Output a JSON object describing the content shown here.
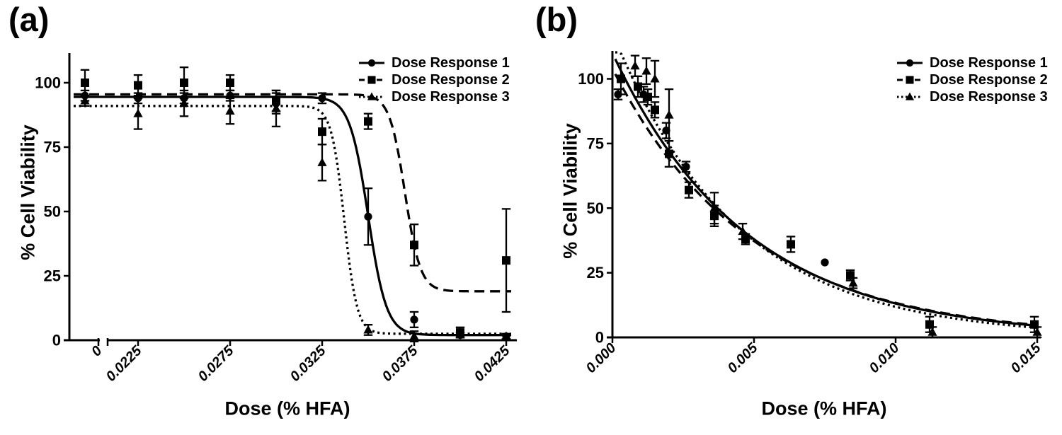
{
  "figure": {
    "background": "#ffffff",
    "ink": "#000000",
    "description": "Two-panel dose-response figure, % cell viability vs dose (% HFA)"
  },
  "chart_data": [
    {
      "id": "a",
      "panel_label": "(a)",
      "type": "scatter",
      "subtype": "dose-response points with SD error bars and fitted sigmoid curves",
      "xlabel": "Dose (% HFA)",
      "ylabel": "% Cell Viability",
      "x_ticks": [
        {
          "label": "0",
          "dose": 0
        },
        {
          "label": "0.0225",
          "dose": 0.0225
        },
        {
          "label": "0.0275",
          "dose": 0.0275
        },
        {
          "label": "0.0325",
          "dose": 0.0325
        },
        {
          "label": "0.0375",
          "dose": 0.0375
        },
        {
          "label": "0.0425",
          "dose": 0.0425
        }
      ],
      "y_ticks": [
        0,
        25,
        50,
        75,
        100
      ],
      "ylim": [
        0,
        111
      ],
      "x_axis_break_after_zero": true,
      "grid": false,
      "legend_position": "top-right-inside",
      "series": [
        {
          "name": "Dose Response 1",
          "marker": "circle",
          "line": "solid",
          "points": [
            [
              0,
              95,
              2
            ],
            [
              0.0225,
              94,
              2
            ],
            [
              0.025,
              94,
              2
            ],
            [
              0.0275,
              95,
              2
            ],
            [
              0.03,
              92,
              4
            ],
            [
              0.0325,
              94,
              2
            ],
            [
              0.035,
              48,
              11
            ],
            [
              0.0375,
              8,
              3
            ],
            [
              0.04,
              2,
              1
            ],
            [
              0.0425,
              1.5,
              1
            ]
          ],
          "fit": {
            "model": "logistic",
            "top": 94.5,
            "bottom": 2,
            "ic50": 0.035,
            "slope": 0.0005
          }
        },
        {
          "name": "Dose Response 2",
          "marker": "square",
          "line": "dashed",
          "points": [
            [
              0,
              100,
              5
            ],
            [
              0.0225,
              99,
              4
            ],
            [
              0.025,
              100,
              6
            ],
            [
              0.0275,
              100,
              3
            ],
            [
              0.03,
              93,
              4
            ],
            [
              0.0325,
              81,
              5
            ],
            [
              0.035,
              85,
              3
            ],
            [
              0.0375,
              37,
              8
            ],
            [
              0.04,
              3,
              2
            ],
            [
              0.0425,
              31,
              20
            ]
          ],
          "fit": {
            "model": "logistic",
            "top": 95.5,
            "bottom": 19,
            "ic50": 0.037,
            "slope": 0.00042
          }
        },
        {
          "name": "Dose Response 3",
          "marker": "triangle",
          "line": "dotted",
          "points": [
            [
              0,
              93,
              2
            ],
            [
              0.0225,
              88,
              6
            ],
            [
              0.025,
              92,
              5
            ],
            [
              0.0275,
              89,
              5
            ],
            [
              0.03,
              90,
              7
            ],
            [
              0.0325,
              69,
              7
            ],
            [
              0.035,
              4,
              2
            ],
            [
              0.0375,
              1.5,
              2
            ],
            [
              0.0425,
              1.5,
              1
            ]
          ],
          "fit": {
            "model": "logistic",
            "top": 91,
            "bottom": 2.5,
            "ic50": 0.0337,
            "slope": 0.00035
          }
        }
      ]
    },
    {
      "id": "b",
      "panel_label": "(b)",
      "type": "scatter",
      "subtype": "dose-response points with SD error bars and fitted exponential-decay curves",
      "xlabel": "Dose (% HFA)",
      "ylabel": "% Cell Viability",
      "x_ticks": [
        {
          "label": "0.000",
          "dose": 0
        },
        {
          "label": "0.005",
          "dose": 0.005
        },
        {
          "label": "0.010",
          "dose": 0.01
        },
        {
          "label": "0.015",
          "dose": 0.015
        }
      ],
      "y_ticks": [
        0,
        25,
        50,
        75,
        100
      ],
      "ylim": [
        0,
        111
      ],
      "x_axis_break_after_zero": false,
      "grid": false,
      "legend_position": "top-right-inside",
      "series": [
        {
          "name": "Dose Response 1",
          "marker": "circle",
          "line": "solid",
          "points": [
            [
              0.0002,
              94,
              2
            ],
            [
              0.0011,
              94,
              3
            ],
            [
              0.0019,
              80,
              3
            ],
            [
              0.0026,
              66,
              2
            ],
            [
              0.0075,
              29,
              0
            ]
          ],
          "fit": {
            "model": "expdecay",
            "amplitude": 110,
            "tau": 0.0047
          }
        },
        {
          "name": "Dose Response 2",
          "marker": "square",
          "line": "dashed",
          "points": [
            [
              0.0003,
              100,
              6
            ],
            [
              0.0009,
              97,
              4
            ],
            [
              0.00125,
              93,
              3
            ],
            [
              0.0015,
              88,
              3
            ],
            [
              0.002,
              71,
              5
            ],
            [
              0.0027,
              57,
              3
            ],
            [
              0.0036,
              47,
              4
            ],
            [
              0.0047,
              38,
              2
            ],
            [
              0.0063,
              36,
              3
            ],
            [
              0.0084,
              24,
              2
            ],
            [
              0.0112,
              5,
              3
            ],
            [
              0.0149,
              5,
              3
            ]
          ],
          "fit": {
            "model": "expdecay",
            "amplitude": 104,
            "tau": 0.00487
          }
        },
        {
          "name": "Dose Response 3",
          "marker": "triangle",
          "line": "dotted",
          "points": [
            [
              0.0008,
              105,
              4
            ],
            [
              0.0012,
              103,
              5
            ],
            [
              0.0015,
              100,
              7
            ],
            [
              0.002,
              86,
              10
            ],
            [
              0.0036,
              50,
              6
            ],
            [
              0.0046,
              41,
              3
            ],
            [
              0.0085,
              21,
              2
            ],
            [
              0.0113,
              2,
              2
            ],
            [
              0.015,
              2,
              2
            ]
          ],
          "fit": {
            "model": "expdecay",
            "amplitude": 118,
            "tau": 0.00435
          }
        }
      ]
    }
  ]
}
